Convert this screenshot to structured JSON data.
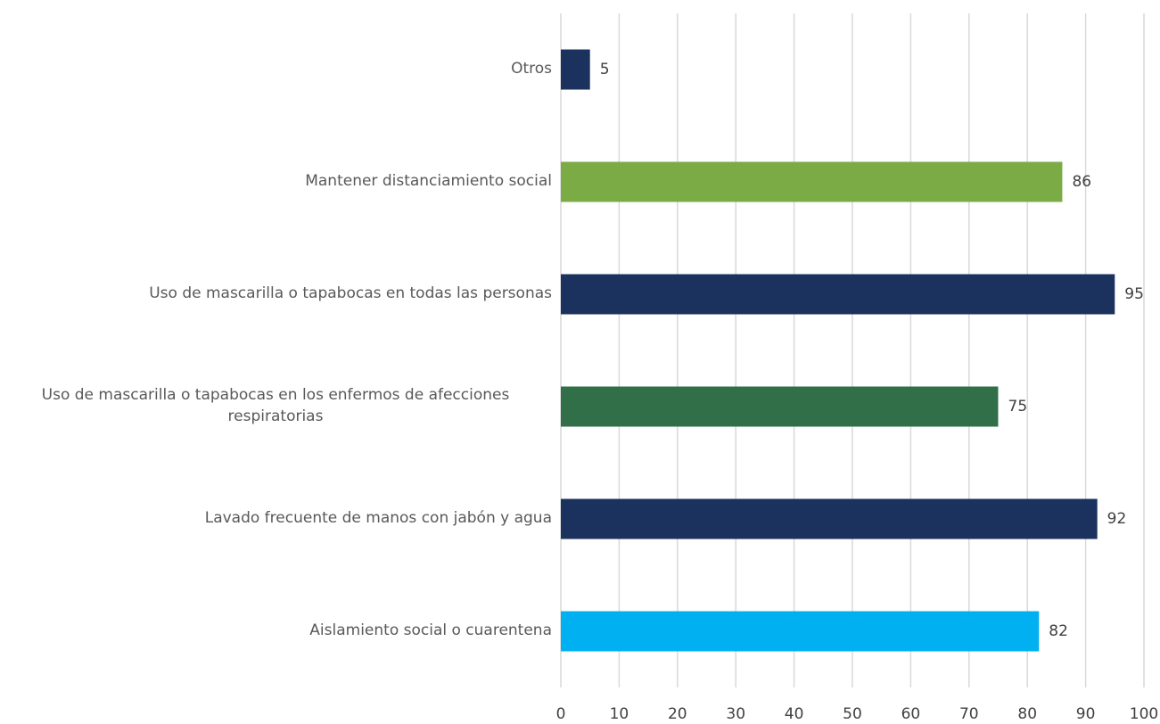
{
  "chart_data": {
    "type": "barh",
    "categories": [
      "Otros",
      "Mantener distanciamiento social",
      "Uso de mascarilla o tapabocas en todas las personas",
      "Uso de mascarilla o tapabocas en los enfermos de afecciones respiratorias",
      "Lavado frecuente de manos con jabón y agua",
      "Aislamiento social o cuarentena"
    ],
    "values": [
      5,
      86,
      95,
      75,
      92,
      82
    ],
    "colors": [
      "#1b325f",
      "#7aab45",
      "#1b325f",
      "#306f47",
      "#1b325f",
      "#00b0f0"
    ],
    "xlim": [
      0,
      100
    ],
    "xticks": [
      0,
      10,
      20,
      30,
      40,
      50,
      60,
      70,
      80,
      90,
      100
    ],
    "grid": true
  }
}
